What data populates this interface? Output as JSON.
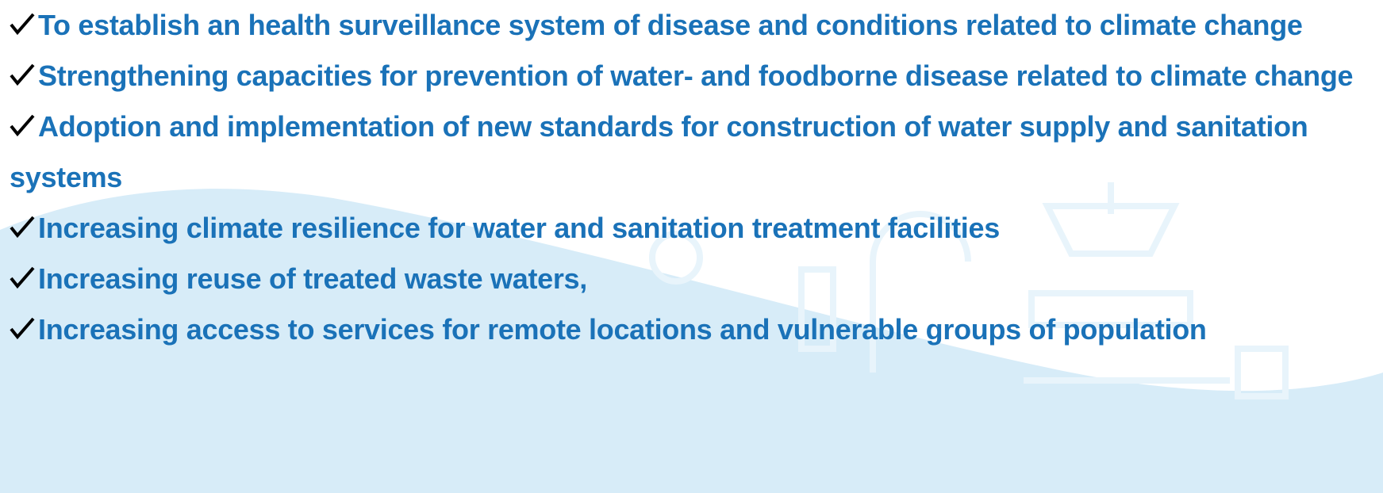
{
  "items": [
    "To establish an health surveillance system of disease and conditions related to climate change",
    "Strengthening capacities for prevention of water- and foodborne disease related to climate change",
    "Adoption and implementation of new standards for construction of water supply and sanitation systems",
    "Increasing climate resilience for water and sanitation treatment facilities",
    "Increasing reuse of treated waste waters,",
    "Increasing access to services for remote locations and vulnerable groups of population"
  ]
}
